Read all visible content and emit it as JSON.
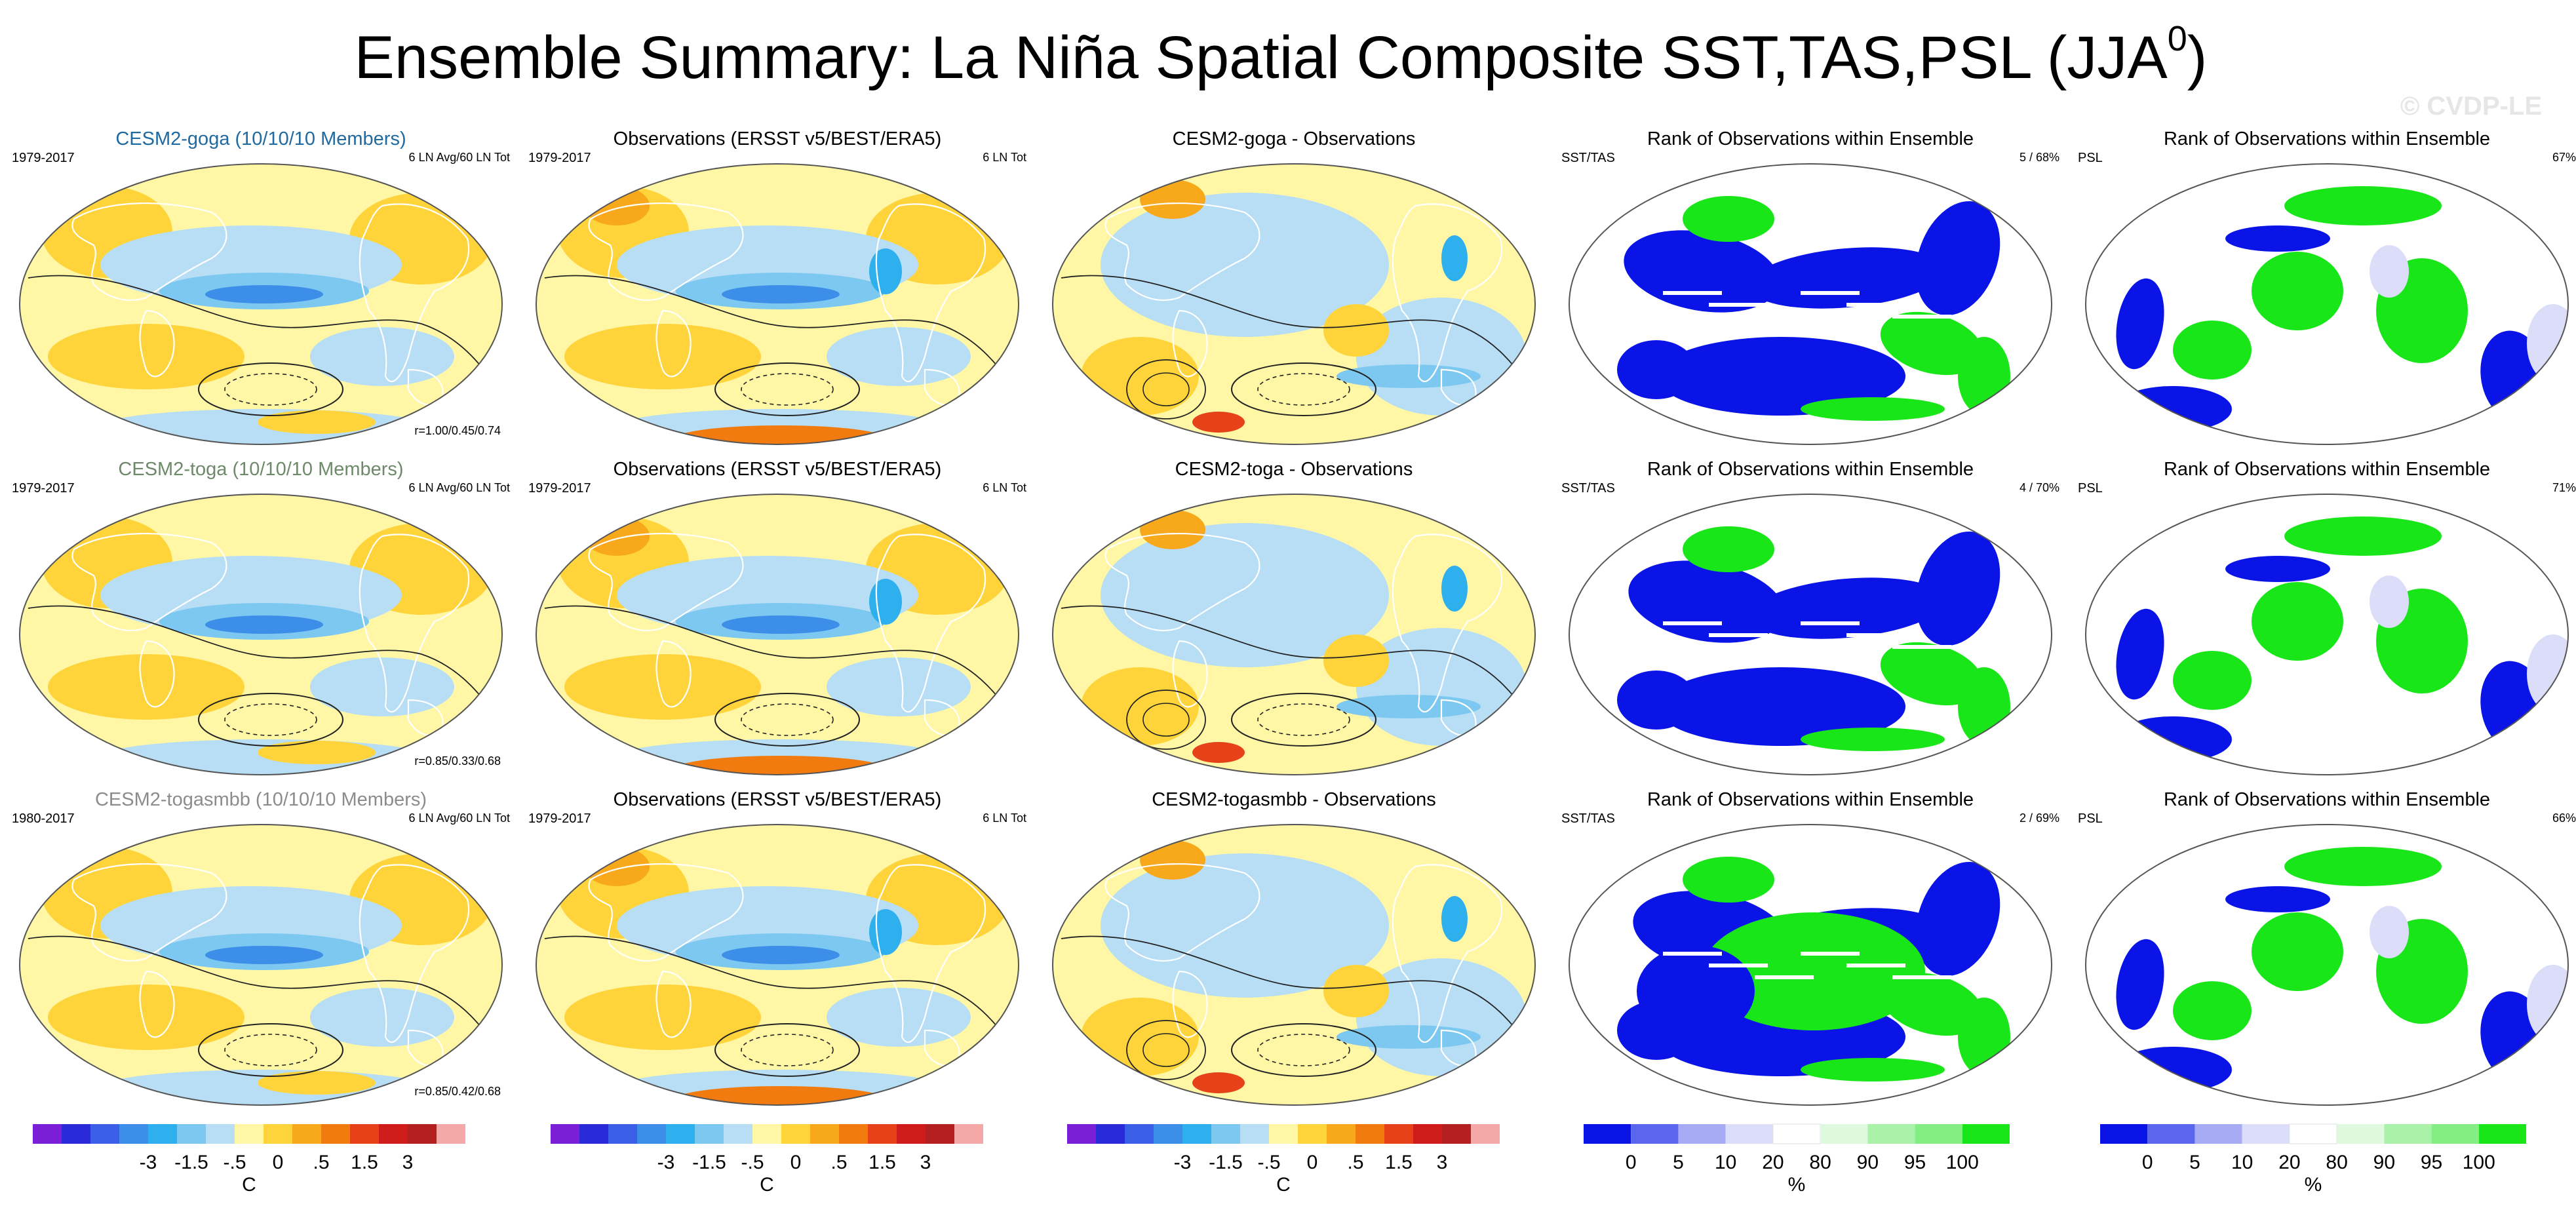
{
  "figure": {
    "title_main": "Ensemble Summary: La Niña Spatial Composite SST,TAS,PSL (JJA",
    "title_sup": "0",
    "title_close": ")",
    "watermark": "© CVDP-LE"
  },
  "rows": [
    {
      "model": "CESM2-goga (10/10/10 Members)",
      "model_color": "#1f6aa0",
      "model_years": "1979-2017",
      "model_info": "6 LN Avg/60 LN Tot",
      "model_corr": "r=1.00/0.45/0.74",
      "obs_title": "Observations (ERSST v5/BEST/ERA5)",
      "obs_years": "1979-2017",
      "obs_info": "6 LN Tot",
      "diff_title": "CESM2-goga - Observations",
      "rank1_title": "Rank of Observations within Ensemble",
      "rank1_left": "SST/TAS",
      "rank1_right": "5 /  68%",
      "rank2_title": "Rank of Observations within Ensemble",
      "rank2_left": "PSL",
      "rank2_right": "67%"
    },
    {
      "model": "CESM2-toga (10/10/10 Members)",
      "model_color": "#6e8a6a",
      "model_years": "1979-2017",
      "model_info": "6 LN Avg/60 LN Tot",
      "model_corr": "r=0.85/0.33/0.68",
      "obs_title": "Observations (ERSST v5/BEST/ERA5)",
      "obs_years": "1979-2017",
      "obs_info": "6 LN Tot",
      "diff_title": "CESM2-toga - Observations",
      "rank1_title": "Rank of Observations within Ensemble",
      "rank1_left": "SST/TAS",
      "rank1_right": "4 /  70%",
      "rank2_title": "Rank of Observations within Ensemble",
      "rank2_left": "PSL",
      "rank2_right": "71%"
    },
    {
      "model": "CESM2-togasmbb (10/10/10 Members)",
      "model_color": "#8c8c8c",
      "model_years": "1980-2017",
      "model_info": "6 LN Avg/60 LN Tot",
      "model_corr": "r=0.85/0.42/0.68",
      "obs_title": "Observations (ERSST v5/BEST/ERA5)",
      "obs_years": "1979-2017",
      "obs_info": "6 LN Tot",
      "diff_title": "CESM2-togasmbb - Observations",
      "rank1_title": "Rank of Observations within Ensemble",
      "rank1_left": "SST/TAS",
      "rank1_right": "2 /  69%",
      "rank2_title": "Rank of Observations within Ensemble",
      "rank2_left": "PSL",
      "rank2_right": "66%"
    }
  ],
  "temp_legend": {
    "colors": [
      "#7a1fd6",
      "#2a2ad8",
      "#3a5fe6",
      "#3d8ee8",
      "#2fb0ee",
      "#7dc8f0",
      "#b7def5",
      "#fff7a6",
      "#ffd43b",
      "#f8a81b",
      "#f27b10",
      "#e7411a",
      "#d01b1b",
      "#b41f1f",
      "#f4a8a8"
    ],
    "labels": [
      "-3",
      "-1.5",
      "-.5",
      "0",
      ".5",
      "1.5",
      "3"
    ],
    "unit": "C"
  },
  "rank_legend": {
    "colors": [
      "#0a14e6",
      "#5a66ee",
      "#a6abf4",
      "#dcdef9",
      "#ffffff",
      "#dff9df",
      "#aaf2aa",
      "#84ee84",
      "#19e619"
    ],
    "labels": [
      "0",
      "5",
      "10",
      "20",
      "80",
      "90",
      "95",
      "100"
    ],
    "unit": "%"
  }
}
